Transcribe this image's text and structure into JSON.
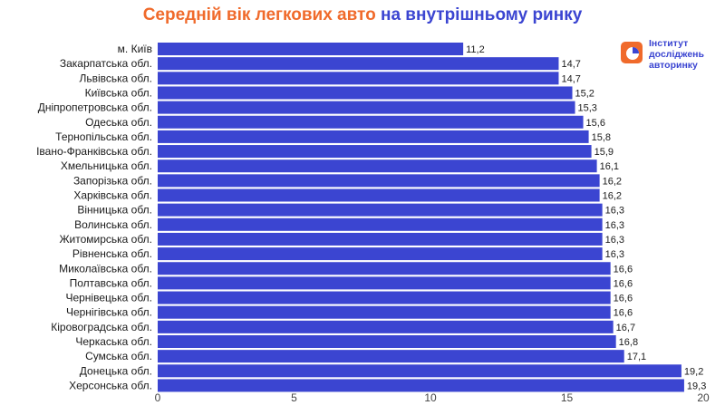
{
  "header": {
    "title_part1": "Середній вік легкових авто",
    "title_part2": "на внутрішньому ринку"
  },
  "logo": {
    "line1": "Інститут",
    "line2": "досліджень",
    "line3": "авторинку"
  },
  "colors": {
    "bar": "#3b45d1",
    "title_orange": "#f06a2b",
    "title_blue": "#3b45d1",
    "logo_orange": "#f06a2b"
  },
  "chart_data": {
    "type": "bar",
    "orientation": "horizontal",
    "categories": [
      "м. Київ",
      "Закарпатська обл.",
      "Львівська обл.",
      "Київська обл.",
      "Дніпропетровська обл.",
      "Одеська обл.",
      "Тернопільська обл.",
      "Івано-Франківська обл.",
      "Хмельницька обл.",
      "Запорізька обл.",
      "Харківська обл.",
      "Вінницька обл.",
      "Волинська обл.",
      "Житомирська обл.",
      "Рівненська обл.",
      "Миколаївська обл.",
      "Полтавська обл.",
      "Чернівецька обл.",
      "Чернігівська обл.",
      "Кіровоградська обл.",
      "Черкаська обл.",
      "Сумська обл.",
      "Донецька обл.",
      "Херсонська обл."
    ],
    "values": [
      11.2,
      14.7,
      14.7,
      15.2,
      15.3,
      15.6,
      15.8,
      15.9,
      16.1,
      16.2,
      16.2,
      16.3,
      16.3,
      16.3,
      16.3,
      16.6,
      16.6,
      16.6,
      16.6,
      16.7,
      16.8,
      17.1,
      19.2,
      19.3
    ],
    "value_labels": [
      "11,2",
      "14,7",
      "14,7",
      "15,2",
      "15,3",
      "15,6",
      "15,8",
      "15,9",
      "16,1",
      "16,2",
      "16,2",
      "16,3",
      "16,3",
      "16,3",
      "16,3",
      "16,6",
      "16,6",
      "16,6",
      "16,6",
      "16,7",
      "16,8",
      "17,1",
      "19,2",
      "19,3"
    ],
    "xlim": [
      0,
      20
    ],
    "xticks": [
      0,
      5,
      10,
      15,
      20
    ],
    "grid": false,
    "legend": "none"
  }
}
